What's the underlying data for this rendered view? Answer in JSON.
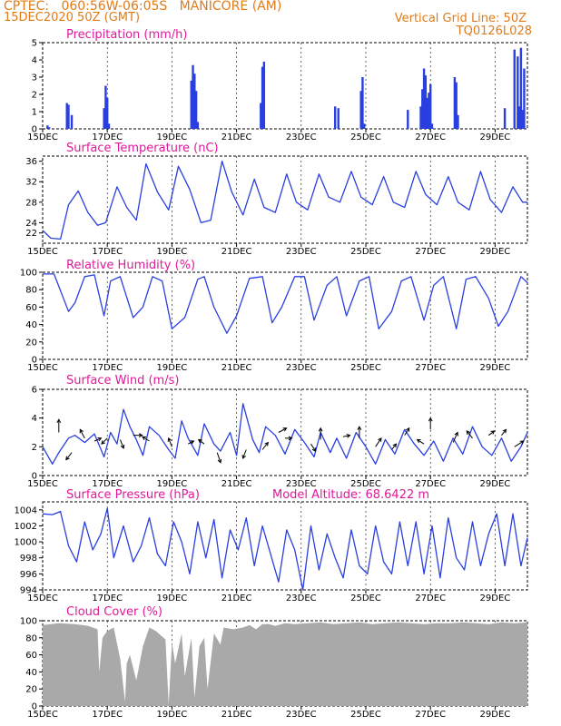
{
  "header": {
    "line1": "CPTEC:   060:56W-06:05S   MANICORE (AM)",
    "line2": "15DEC2020 50Z (GMT)",
    "grid_note": "Vertical Grid Line: 50Z",
    "code": "TQ0126L028"
  },
  "colors": {
    "header": "#e07b1a",
    "title": "#e0199a",
    "series": "#2a3fe0",
    "cloud": "#a9a9a9",
    "grid": "#000000"
  },
  "x_ticks": [
    "15DEC",
    "17DEC",
    "19DEC",
    "21DEC",
    "23DEC",
    "25DEC",
    "27DEC",
    "29DEC"
  ],
  "chart_data": [
    {
      "type": "bar",
      "id": "precip",
      "title": "Precipitation (mm/h)",
      "ylim": [
        0,
        5
      ],
      "yticks": [
        0,
        1,
        2,
        3,
        4,
        5
      ],
      "x_range_days": [
        15,
        30
      ],
      "x": [
        15.15,
        15.2,
        15.75,
        15.8,
        15.9,
        16.9,
        16.95,
        17.0,
        17.05,
        19.6,
        19.65,
        19.7,
        19.75,
        19.8,
        21.75,
        21.8,
        21.85,
        24.05,
        24.15,
        24.85,
        24.9,
        24.95,
        26.3,
        26.7,
        26.75,
        26.8,
        26.85,
        26.9,
        26.95,
        27.0,
        27.05,
        27.75,
        27.8,
        27.85,
        29.3,
        29.6,
        29.7,
        29.75,
        29.8,
        29.85,
        29.9
      ],
      "values": [
        0.2,
        0.1,
        1.5,
        1.4,
        0.8,
        1.2,
        2.5,
        1.8,
        0.3,
        2.8,
        3.7,
        3.2,
        2.2,
        0.4,
        1.5,
        3.6,
        3.9,
        1.3,
        1.2,
        2.2,
        3.0,
        0.3,
        1.1,
        1.3,
        2.3,
        3.5,
        3.1,
        1.8,
        2.1,
        2.6,
        0.3,
        3.0,
        2.7,
        0.8,
        1.2,
        4.6,
        4.2,
        1.3,
        4.7,
        1.1,
        3.5
      ]
    },
    {
      "type": "line",
      "id": "temp",
      "title": "Surface Temperature (nC)",
      "ylim": [
        20,
        37
      ],
      "yticks": [
        22,
        24,
        28,
        32,
        36
      ],
      "x_range_days": [
        15,
        30
      ],
      "x": [
        15.0,
        15.25,
        15.55,
        15.8,
        16.1,
        16.4,
        16.7,
        16.95,
        17.3,
        17.6,
        17.9,
        18.2,
        18.55,
        18.9,
        19.2,
        19.55,
        19.9,
        20.2,
        20.55,
        20.85,
        21.2,
        21.55,
        21.85,
        22.2,
        22.55,
        22.85,
        23.2,
        23.55,
        23.85,
        24.2,
        24.55,
        24.85,
        25.2,
        25.55,
        25.85,
        26.2,
        26.55,
        26.85,
        27.2,
        27.55,
        27.85,
        28.2,
        28.55,
        28.85,
        29.2,
        29.55,
        29.85,
        30.0
      ],
      "values": [
        22.5,
        21.0,
        20.8,
        27.5,
        30.2,
        26.0,
        23.5,
        24.0,
        31.0,
        27.0,
        24.5,
        35.5,
        30.0,
        26.5,
        35.0,
        30.5,
        24.0,
        24.5,
        36.0,
        30.0,
        25.5,
        32.5,
        27.0,
        26.0,
        33.5,
        28.0,
        26.5,
        33.5,
        29.0,
        28.0,
        34.0,
        29.0,
        27.5,
        33.0,
        28.0,
        27.0,
        34.0,
        29.5,
        27.5,
        33.0,
        28.0,
        26.5,
        34.0,
        28.5,
        26.0,
        31.0,
        28.0,
        28.0
      ]
    },
    {
      "type": "line",
      "id": "rh",
      "title": "Relative Humidity (%)",
      "ylim": [
        0,
        100
      ],
      "yticks": [
        0,
        20,
        40,
        60,
        80,
        100
      ],
      "x_range_days": [
        15,
        30
      ],
      "x": [
        15.0,
        15.35,
        15.8,
        16.0,
        16.3,
        16.6,
        16.9,
        17.1,
        17.4,
        17.8,
        18.1,
        18.4,
        18.7,
        19.0,
        19.4,
        19.8,
        20.0,
        20.3,
        20.7,
        21.0,
        21.4,
        21.8,
        22.1,
        22.4,
        22.8,
        23.1,
        23.4,
        23.8,
        24.1,
        24.4,
        24.8,
        25.1,
        25.4,
        25.8,
        26.1,
        26.4,
        26.8,
        27.1,
        27.4,
        27.8,
        28.1,
        28.4,
        28.8,
        29.1,
        29.4,
        29.8,
        30.0
      ],
      "values": [
        98,
        98,
        55,
        65,
        95,
        97,
        50,
        90,
        95,
        48,
        60,
        95,
        90,
        35,
        48,
        92,
        95,
        60,
        30,
        50,
        93,
        95,
        42,
        60,
        95,
        95,
        45,
        85,
        95,
        50,
        90,
        95,
        35,
        55,
        90,
        95,
        45,
        85,
        95,
        35,
        92,
        95,
        70,
        38,
        55,
        95,
        88
      ]
    },
    {
      "type": "line",
      "id": "wind",
      "title": "Surface Wind (m/s)",
      "ylim": [
        0,
        6
      ],
      "yticks": [
        0,
        2,
        4,
        6
      ],
      "x_range_days": [
        15,
        30
      ],
      "x": [
        15.0,
        15.3,
        15.5,
        15.8,
        16.0,
        16.3,
        16.6,
        16.9,
        17.1,
        17.3,
        17.5,
        17.7,
        17.9,
        18.1,
        18.3,
        18.6,
        18.9,
        19.1,
        19.3,
        19.5,
        19.8,
        20.0,
        20.3,
        20.5,
        20.8,
        21.0,
        21.2,
        21.5,
        21.7,
        21.9,
        22.2,
        22.5,
        22.8,
        23.1,
        23.4,
        23.6,
        23.9,
        24.1,
        24.4,
        24.7,
        25.0,
        25.3,
        25.6,
        25.9,
        26.2,
        26.5,
        26.8,
        27.1,
        27.4,
        27.7,
        28.0,
        28.3,
        28.6,
        28.9,
        29.2,
        29.5,
        29.8,
        30.0
      ],
      "values": [
        2.0,
        0.8,
        1.6,
        2.6,
        2.8,
        2.3,
        2.9,
        1.3,
        3.0,
        2.2,
        4.6,
        3.4,
        2.5,
        1.4,
        3.4,
        2.8,
        1.8,
        1.2,
        3.8,
        2.6,
        1.4,
        3.6,
        2.2,
        1.7,
        3.0,
        1.4,
        5.0,
        2.5,
        1.6,
        3.4,
        2.8,
        1.5,
        3.2,
        2.3,
        1.3,
        3.0,
        1.6,
        2.6,
        1.2,
        3.0,
        2.0,
        0.8,
        2.5,
        1.5,
        3.2,
        2.2,
        1.4,
        2.4,
        1.0,
        2.6,
        1.5,
        3.4,
        2.0,
        1.4,
        2.6,
        1.0,
        2.0,
        3.0
      ],
      "arrows": [
        {
          "x": 15.5,
          "y": 3.0,
          "dx": 0,
          "dy": 0.9
        },
        {
          "x": 15.9,
          "y": 1.6,
          "dx": -0.5,
          "dy": -0.5
        },
        {
          "x": 16.3,
          "y": 2.6,
          "dx": -0.4,
          "dy": 0.6
        },
        {
          "x": 16.6,
          "y": 2.4,
          "dx": 0.6,
          "dy": 0.2
        },
        {
          "x": 17.0,
          "y": 2.6,
          "dx": -0.5,
          "dy": -0.4
        },
        {
          "x": 17.4,
          "y": 2.5,
          "dx": 0.3,
          "dy": -0.6
        },
        {
          "x": 17.8,
          "y": 2.8,
          "dx": 0.8,
          "dy": 0
        },
        {
          "x": 18.3,
          "y": 2.4,
          "dx": -0.6,
          "dy": 0.3
        },
        {
          "x": 19.0,
          "y": 2.0,
          "dx": -0.3,
          "dy": 0.6
        },
        {
          "x": 19.5,
          "y": 2.2,
          "dx": 0.5,
          "dy": 0.2
        },
        {
          "x": 20.0,
          "y": 2.2,
          "dx": -0.5,
          "dy": 0.3
        },
        {
          "x": 20.4,
          "y": 1.6,
          "dx": 0.3,
          "dy": -0.7
        },
        {
          "x": 21.3,
          "y": 1.8,
          "dx": -0.3,
          "dy": -0.6
        },
        {
          "x": 21.8,
          "y": 1.8,
          "dx": 0.5,
          "dy": 0.5
        },
        {
          "x": 22.3,
          "y": 3.0,
          "dx": 0.7,
          "dy": 0.3
        },
        {
          "x": 22.5,
          "y": 2.6,
          "dx": 0.6,
          "dy": 0
        },
        {
          "x": 23.3,
          "y": 2.2,
          "dx": 0.4,
          "dy": -0.5
        },
        {
          "x": 23.6,
          "y": 2.5,
          "dx": 0,
          "dy": 0.8
        },
        {
          "x": 24.3,
          "y": 2.7,
          "dx": 0.6,
          "dy": 0.1
        },
        {
          "x": 24.8,
          "y": 2.6,
          "dx": 0,
          "dy": 0.8
        },
        {
          "x": 25.3,
          "y": 2.0,
          "dx": 0.5,
          "dy": 0.6
        },
        {
          "x": 25.8,
          "y": 1.8,
          "dx": 0.4,
          "dy": 0.4
        },
        {
          "x": 26.2,
          "y": 2.8,
          "dx": 0.4,
          "dy": 0.5
        },
        {
          "x": 26.8,
          "y": 2.2,
          "dx": -0.6,
          "dy": 0.3
        },
        {
          "x": 27.0,
          "y": 3.2,
          "dx": 0,
          "dy": 0.8
        },
        {
          "x": 27.7,
          "y": 2.3,
          "dx": 0.4,
          "dy": 0.7
        },
        {
          "x": 28.3,
          "y": 2.6,
          "dx": -0.5,
          "dy": 0.5
        },
        {
          "x": 28.8,
          "y": 2.8,
          "dx": 0.5,
          "dy": 0.3
        },
        {
          "x": 29.2,
          "y": 2.8,
          "dx": 0.4,
          "dy": 0.4
        },
        {
          "x": 29.6,
          "y": 2.0,
          "dx": 0.8,
          "dy": 0.4
        }
      ]
    },
    {
      "type": "line",
      "id": "pres",
      "title": "Surface Pressure (hPa)",
      "subtitle": "Model Altitude: 68.6422 m",
      "ylim": [
        994,
        1005
      ],
      "yticks": [
        994,
        996,
        998,
        1000,
        1002,
        1004
      ],
      "x_range_days": [
        15,
        30
      ],
      "x": [
        15.0,
        15.3,
        15.55,
        15.8,
        16.05,
        16.3,
        16.55,
        16.8,
        17.0,
        17.2,
        17.5,
        17.8,
        18.05,
        18.3,
        18.55,
        18.8,
        19.05,
        19.3,
        19.55,
        19.8,
        20.05,
        20.3,
        20.55,
        20.8,
        21.05,
        21.3,
        21.55,
        21.8,
        22.05,
        22.3,
        22.55,
        22.8,
        23.05,
        23.3,
        23.55,
        23.8,
        24.05,
        24.3,
        24.55,
        24.8,
        25.05,
        25.3,
        25.55,
        25.8,
        26.05,
        26.3,
        26.55,
        26.8,
        27.05,
        27.3,
        27.55,
        27.8,
        28.05,
        28.3,
        28.55,
        28.8,
        29.05,
        29.3,
        29.55,
        29.8,
        30.0
      ],
      "values": [
        1003.5,
        1003.4,
        1003.8,
        999.5,
        997.5,
        1002.5,
        999.0,
        1001.0,
        1004.2,
        998.0,
        1002.0,
        997.5,
        999.5,
        1003.0,
        998.5,
        997.0,
        1002.5,
        1000.0,
        996.0,
        1002.5,
        998.0,
        1002.8,
        995.5,
        1001.5,
        999.0,
        1003.0,
        997.0,
        1002.0,
        998.5,
        995.0,
        1001.5,
        999.0,
        994.0,
        1002.0,
        996.5,
        1001.0,
        998.0,
        995.5,
        1001.5,
        997.0,
        996.0,
        1002.0,
        997.5,
        996.0,
        1002.5,
        997.0,
        1002.5,
        996.0,
        1002.0,
        995.5,
        1003.0,
        998.0,
        996.5,
        1002.5,
        997.0,
        1001.0,
        1003.5,
        997.0,
        1003.5,
        997.0,
        1000.5
      ]
    },
    {
      "type": "area",
      "id": "cloud",
      "title": "Cloud Cover (%)",
      "ylim": [
        0,
        100
      ],
      "yticks": [
        0,
        20,
        40,
        60,
        80,
        100
      ],
      "x_range_days": [
        15,
        30
      ],
      "x": [
        15.0,
        15.5,
        16.0,
        16.4,
        16.7,
        16.75,
        16.85,
        17.0,
        17.2,
        17.4,
        17.55,
        17.6,
        17.7,
        17.9,
        18.1,
        18.3,
        18.5,
        18.8,
        18.9,
        19.0,
        19.1,
        19.3,
        19.4,
        19.6,
        19.7,
        19.85,
        20.0,
        20.1,
        20.3,
        20.5,
        20.6,
        20.9,
        21.2,
        21.4,
        21.6,
        21.8,
        22.0,
        22.2,
        22.5,
        22.8,
        23.2,
        23.6,
        24.0,
        24.4,
        24.8,
        25.2,
        25.6,
        26.0,
        26.4,
        26.8,
        27.2,
        27.6,
        28.0,
        28.4,
        28.8,
        29.2,
        29.6,
        30.0
      ],
      "values": [
        95,
        97,
        96,
        94,
        90,
        40,
        80,
        88,
        92,
        55,
        5,
        50,
        60,
        30,
        70,
        92,
        88,
        78,
        2,
        75,
        50,
        85,
        35,
        80,
        10,
        70,
        80,
        20,
        85,
        72,
        92,
        90,
        92,
        95,
        90,
        96,
        96,
        94,
        97,
        96,
        97,
        98,
        96,
        97,
        98,
        96,
        97,
        98,
        97,
        96,
        97,
        97,
        98,
        97,
        96,
        98,
        97,
        98
      ]
    }
  ]
}
